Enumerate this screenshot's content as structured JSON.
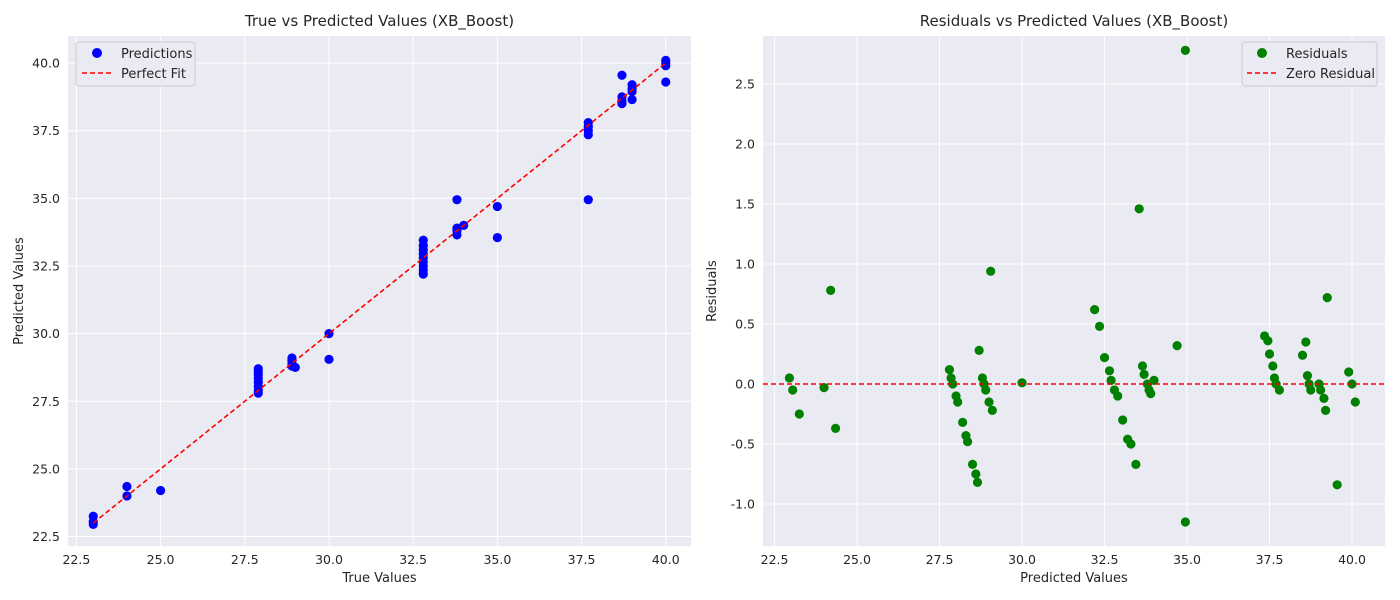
{
  "chart_data": [
    {
      "type": "scatter",
      "title": "True vs Predicted Values (XB_Boost)",
      "xlabel": "True Values",
      "ylabel": "Predicted Values",
      "xlim": [
        22.25,
        40.75
      ],
      "ylim": [
        22.15,
        41.0
      ],
      "xticks": [
        22.5,
        25.0,
        27.5,
        30.0,
        32.5,
        35.0,
        37.5,
        40.0
      ],
      "yticks": [
        22.5,
        25.0,
        27.5,
        30.0,
        32.5,
        35.0,
        37.5,
        40.0
      ],
      "grid": true,
      "legend_position": "top-left",
      "series": [
        {
          "name": "Predictions",
          "kind": "points",
          "color": "#0000ff",
          "points": [
            [
              23.0,
              22.95
            ],
            [
              23.0,
              23.05
            ],
            [
              23.0,
              23.25
            ],
            [
              24.0,
              24.0
            ],
            [
              24.0,
              24.35
            ],
            [
              25.0,
              24.2
            ],
            [
              27.9,
              27.8
            ],
            [
              27.9,
              27.9
            ],
            [
              27.9,
              28.05
            ],
            [
              27.9,
              28.2
            ],
            [
              27.9,
              28.35
            ],
            [
              27.9,
              28.5
            ],
            [
              27.9,
              28.6
            ],
            [
              27.9,
              28.7
            ],
            [
              28.9,
              28.8
            ],
            [
              28.9,
              28.9
            ],
            [
              28.9,
              29.0
            ],
            [
              28.9,
              29.1
            ],
            [
              29.0,
              28.75
            ],
            [
              30.0,
              30.0
            ],
            [
              30.0,
              29.05
            ],
            [
              32.8,
              32.2
            ],
            [
              32.8,
              32.35
            ],
            [
              32.8,
              32.5
            ],
            [
              32.8,
              32.65
            ],
            [
              32.8,
              32.8
            ],
            [
              32.8,
              32.95
            ],
            [
              32.8,
              33.1
            ],
            [
              32.8,
              33.25
            ],
            [
              32.8,
              33.45
            ],
            [
              33.8,
              33.65
            ],
            [
              33.8,
              33.8
            ],
            [
              33.8,
              33.9
            ],
            [
              33.8,
              34.95
            ],
            [
              34.0,
              34.0
            ],
            [
              35.0,
              33.55
            ],
            [
              35.0,
              34.7
            ],
            [
              37.7,
              34.95
            ],
            [
              37.7,
              37.35
            ],
            [
              37.7,
              37.5
            ],
            [
              37.7,
              37.65
            ],
            [
              37.7,
              37.8
            ],
            [
              38.7,
              38.5
            ],
            [
              38.7,
              38.6
            ],
            [
              38.7,
              38.75
            ],
            [
              38.7,
              39.55
            ],
            [
              39.0,
              38.65
            ],
            [
              39.0,
              38.95
            ],
            [
              39.0,
              39.05
            ],
            [
              39.0,
              39.2
            ],
            [
              40.0,
              39.3
            ],
            [
              40.0,
              39.9
            ],
            [
              40.0,
              40.0
            ],
            [
              40.0,
              40.1
            ]
          ]
        },
        {
          "name": "Perfect Fit",
          "kind": "line",
          "color": "#ff0000",
          "dashed": true,
          "points": [
            [
              23.0,
              23.0
            ],
            [
              40.0,
              40.0
            ]
          ]
        }
      ]
    },
    {
      "type": "scatter",
      "title": "Residuals vs Predicted Values (XB_Boost)",
      "xlabel": "Predicted Values",
      "ylabel": "Residuals",
      "xlim": [
        22.15,
        41.0
      ],
      "ylim": [
        -1.35,
        2.9
      ],
      "xticks": [
        22.5,
        25.0,
        27.5,
        30.0,
        32.5,
        35.0,
        37.5,
        40.0
      ],
      "yticks": [
        -1.0,
        -0.5,
        0.0,
        0.5,
        1.0,
        1.5,
        2.0,
        2.5
      ],
      "grid": true,
      "legend_position": "top-right",
      "series": [
        {
          "name": "Residuals",
          "kind": "points",
          "color": "#008000",
          "points": [
            [
              22.95,
              0.05
            ],
            [
              23.05,
              -0.05
            ],
            [
              23.25,
              -0.25
            ],
            [
              24.0,
              -0.03
            ],
            [
              24.2,
              0.78
            ],
            [
              24.35,
              -0.37
            ],
            [
              27.8,
              0.12
            ],
            [
              27.85,
              0.05
            ],
            [
              27.9,
              0.0
            ],
            [
              28.0,
              -0.1
            ],
            [
              28.05,
              -0.15
            ],
            [
              28.2,
              -0.32
            ],
            [
              28.3,
              -0.43
            ],
            [
              28.35,
              -0.48
            ],
            [
              28.5,
              -0.67
            ],
            [
              28.6,
              -0.75
            ],
            [
              28.65,
              -0.82
            ],
            [
              28.7,
              0.28
            ],
            [
              28.8,
              0.05
            ],
            [
              28.85,
              0.0
            ],
            [
              28.9,
              -0.05
            ],
            [
              29.0,
              -0.15
            ],
            [
              29.05,
              0.94
            ],
            [
              29.1,
              -0.22
            ],
            [
              30.0,
              0.01
            ],
            [
              32.2,
              0.62
            ],
            [
              32.35,
              0.48
            ],
            [
              32.5,
              0.22
            ],
            [
              32.65,
              0.11
            ],
            [
              32.7,
              0.03
            ],
            [
              32.8,
              -0.05
            ],
            [
              32.9,
              -0.1
            ],
            [
              33.05,
              -0.3
            ],
            [
              33.2,
              -0.46
            ],
            [
              33.3,
              -0.5
            ],
            [
              33.45,
              -0.67
            ],
            [
              33.55,
              1.46
            ],
            [
              33.65,
              0.15
            ],
            [
              33.7,
              0.08
            ],
            [
              33.8,
              0.0
            ],
            [
              33.85,
              -0.05
            ],
            [
              33.9,
              -0.08
            ],
            [
              34.0,
              0.03
            ],
            [
              34.7,
              0.32
            ],
            [
              34.95,
              2.78
            ],
            [
              34.95,
              -1.15
            ],
            [
              37.35,
              0.4
            ],
            [
              37.45,
              0.36
            ],
            [
              37.5,
              0.25
            ],
            [
              37.6,
              0.15
            ],
            [
              37.65,
              0.05
            ],
            [
              37.7,
              0.0
            ],
            [
              37.8,
              -0.05
            ],
            [
              38.5,
              0.24
            ],
            [
              38.6,
              0.35
            ],
            [
              38.65,
              0.07
            ],
            [
              38.7,
              0.0
            ],
            [
              38.75,
              -0.05
            ],
            [
              39.0,
              0.0
            ],
            [
              39.05,
              -0.05
            ],
            [
              39.15,
              -0.12
            ],
            [
              39.2,
              -0.22
            ],
            [
              39.25,
              0.72
            ],
            [
              39.55,
              -0.84
            ],
            [
              39.9,
              0.1
            ],
            [
              40.0,
              0.0
            ],
            [
              40.1,
              -0.15
            ]
          ]
        },
        {
          "name": "Zero Residual",
          "kind": "hline",
          "color": "#ff0000",
          "dashed": true,
          "y": 0.0
        }
      ]
    }
  ]
}
